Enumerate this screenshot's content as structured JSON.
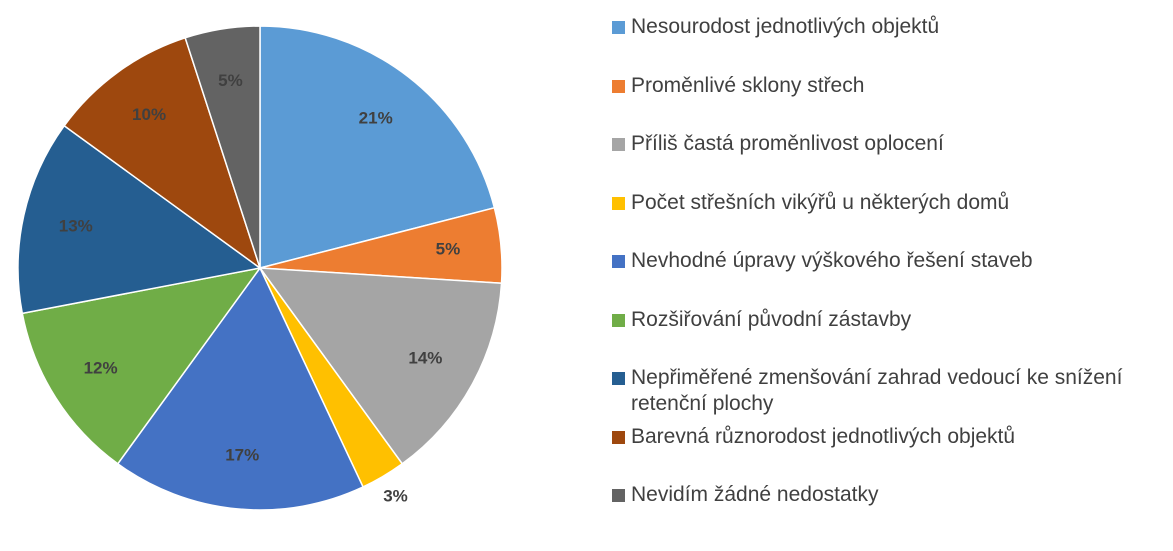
{
  "chart_data": {
    "type": "pie",
    "categories": [
      "Nesourodost jednotlivých objektů",
      "Proměnlivé sklony střech",
      "Příliš častá proměnlivost oplocení",
      "Počet střešních vikýřů u některých domů",
      "Nevhodné úpravy výškového řešení staveb",
      "Rozšiřování původní zástavby",
      "Nepřiměřené zmenšování zahrad vedoucí ke snížení retenční plochy",
      "Barevná různorodost jednotlivých objektů",
      "Nevidím žádné nedostatky"
    ],
    "values": [
      21,
      5,
      14,
      3,
      17,
      12,
      13,
      10,
      5
    ],
    "value_labels": [
      "21%",
      "5%",
      "14%",
      "3%",
      "17%",
      "12%",
      "13%",
      "10%",
      "5%"
    ],
    "colors": [
      "#5b9bd5",
      "#ed7d31",
      "#a5a5a5",
      "#ffc000",
      "#4472c4",
      "#70ad47",
      "#255e91",
      "#9e480e",
      "#636363"
    ],
    "legend": "right"
  }
}
